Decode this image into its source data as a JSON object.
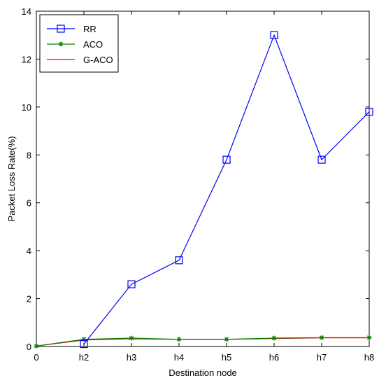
{
  "chart_data": {
    "type": "line",
    "categories": [
      "0",
      "h2",
      "h3",
      "h4",
      "h5",
      "h6",
      "h7",
      "h8"
    ],
    "x": [
      0,
      1,
      2,
      3,
      4,
      5,
      6,
      7
    ],
    "xlabel": "Destination node",
    "ylabel": "Packet Loss Rate(%)",
    "ylim": [
      0,
      14
    ],
    "yticks": [
      0,
      2,
      4,
      6,
      8,
      10,
      12,
      14
    ],
    "grid": false,
    "legend_position": "top-left",
    "series": [
      {
        "name": "RR",
        "color": "#0000ff",
        "marker": "square",
        "x": [
          1,
          2,
          3,
          4,
          5,
          6,
          7
        ],
        "values": [
          0.1,
          2.6,
          3.6,
          7.8,
          13.0,
          7.8,
          9.8
        ]
      },
      {
        "name": "ACO",
        "color": "#008000",
        "marker": "star",
        "x": [
          0,
          1,
          2,
          3,
          4,
          5,
          6,
          7
        ],
        "values": [
          0.02,
          0.3,
          0.35,
          0.3,
          0.3,
          0.35,
          0.37,
          0.37
        ]
      },
      {
        "name": "G-ACO",
        "color": "#ff0000",
        "marker": "none",
        "x": [
          0,
          1,
          2,
          3,
          4,
          5,
          6,
          7
        ],
        "values": [
          0.02,
          0.27,
          0.32,
          0.3,
          0.3,
          0.33,
          0.36,
          0.36
        ]
      }
    ]
  }
}
